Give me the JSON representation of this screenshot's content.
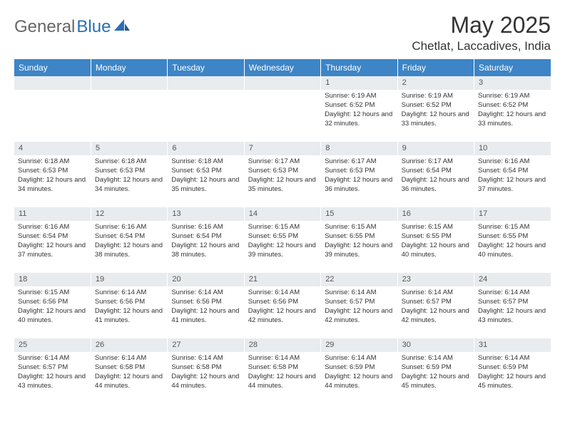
{
  "logo": {
    "part1": "General",
    "part2": "Blue"
  },
  "title": "May 2025",
  "location": "Chetlat, Laccadives, India",
  "colors": {
    "header_bg": "#3d85c6",
    "header_text": "#ffffff",
    "daynum_bg": "#e8ecef",
    "text": "#333333",
    "logo_gray": "#666666",
    "logo_blue": "#2a6fb5"
  },
  "weekdays": [
    "Sunday",
    "Monday",
    "Tuesday",
    "Wednesday",
    "Thursday",
    "Friday",
    "Saturday"
  ],
  "layout": {
    "rows": 5,
    "cols": 7,
    "first_day_col": 4
  },
  "days": [
    {
      "n": 1,
      "sunrise": "6:19 AM",
      "sunset": "6:52 PM",
      "daylight": "12 hours and 32 minutes."
    },
    {
      "n": 2,
      "sunrise": "6:19 AM",
      "sunset": "6:52 PM",
      "daylight": "12 hours and 33 minutes."
    },
    {
      "n": 3,
      "sunrise": "6:19 AM",
      "sunset": "6:52 PM",
      "daylight": "12 hours and 33 minutes."
    },
    {
      "n": 4,
      "sunrise": "6:18 AM",
      "sunset": "6:53 PM",
      "daylight": "12 hours and 34 minutes."
    },
    {
      "n": 5,
      "sunrise": "6:18 AM",
      "sunset": "6:53 PM",
      "daylight": "12 hours and 34 minutes."
    },
    {
      "n": 6,
      "sunrise": "6:18 AM",
      "sunset": "6:53 PM",
      "daylight": "12 hours and 35 minutes."
    },
    {
      "n": 7,
      "sunrise": "6:17 AM",
      "sunset": "6:53 PM",
      "daylight": "12 hours and 35 minutes."
    },
    {
      "n": 8,
      "sunrise": "6:17 AM",
      "sunset": "6:53 PM",
      "daylight": "12 hours and 36 minutes."
    },
    {
      "n": 9,
      "sunrise": "6:17 AM",
      "sunset": "6:54 PM",
      "daylight": "12 hours and 36 minutes."
    },
    {
      "n": 10,
      "sunrise": "6:16 AM",
      "sunset": "6:54 PM",
      "daylight": "12 hours and 37 minutes."
    },
    {
      "n": 11,
      "sunrise": "6:16 AM",
      "sunset": "6:54 PM",
      "daylight": "12 hours and 37 minutes."
    },
    {
      "n": 12,
      "sunrise": "6:16 AM",
      "sunset": "6:54 PM",
      "daylight": "12 hours and 38 minutes."
    },
    {
      "n": 13,
      "sunrise": "6:16 AM",
      "sunset": "6:54 PM",
      "daylight": "12 hours and 38 minutes."
    },
    {
      "n": 14,
      "sunrise": "6:15 AM",
      "sunset": "6:55 PM",
      "daylight": "12 hours and 39 minutes."
    },
    {
      "n": 15,
      "sunrise": "6:15 AM",
      "sunset": "6:55 PM",
      "daylight": "12 hours and 39 minutes."
    },
    {
      "n": 16,
      "sunrise": "6:15 AM",
      "sunset": "6:55 PM",
      "daylight": "12 hours and 40 minutes."
    },
    {
      "n": 17,
      "sunrise": "6:15 AM",
      "sunset": "6:55 PM",
      "daylight": "12 hours and 40 minutes."
    },
    {
      "n": 18,
      "sunrise": "6:15 AM",
      "sunset": "6:56 PM",
      "daylight": "12 hours and 40 minutes."
    },
    {
      "n": 19,
      "sunrise": "6:14 AM",
      "sunset": "6:56 PM",
      "daylight": "12 hours and 41 minutes."
    },
    {
      "n": 20,
      "sunrise": "6:14 AM",
      "sunset": "6:56 PM",
      "daylight": "12 hours and 41 minutes."
    },
    {
      "n": 21,
      "sunrise": "6:14 AM",
      "sunset": "6:56 PM",
      "daylight": "12 hours and 42 minutes."
    },
    {
      "n": 22,
      "sunrise": "6:14 AM",
      "sunset": "6:57 PM",
      "daylight": "12 hours and 42 minutes."
    },
    {
      "n": 23,
      "sunrise": "6:14 AM",
      "sunset": "6:57 PM",
      "daylight": "12 hours and 42 minutes."
    },
    {
      "n": 24,
      "sunrise": "6:14 AM",
      "sunset": "6:57 PM",
      "daylight": "12 hours and 43 minutes."
    },
    {
      "n": 25,
      "sunrise": "6:14 AM",
      "sunset": "6:57 PM",
      "daylight": "12 hours and 43 minutes."
    },
    {
      "n": 26,
      "sunrise": "6:14 AM",
      "sunset": "6:58 PM",
      "daylight": "12 hours and 44 minutes."
    },
    {
      "n": 27,
      "sunrise": "6:14 AM",
      "sunset": "6:58 PM",
      "daylight": "12 hours and 44 minutes."
    },
    {
      "n": 28,
      "sunrise": "6:14 AM",
      "sunset": "6:58 PM",
      "daylight": "12 hours and 44 minutes."
    },
    {
      "n": 29,
      "sunrise": "6:14 AM",
      "sunset": "6:59 PM",
      "daylight": "12 hours and 44 minutes."
    },
    {
      "n": 30,
      "sunrise": "6:14 AM",
      "sunset": "6:59 PM",
      "daylight": "12 hours and 45 minutes."
    },
    {
      "n": 31,
      "sunrise": "6:14 AM",
      "sunset": "6:59 PM",
      "daylight": "12 hours and 45 minutes."
    }
  ],
  "labels": {
    "sunrise": "Sunrise:",
    "sunset": "Sunset:",
    "daylight": "Daylight:"
  }
}
